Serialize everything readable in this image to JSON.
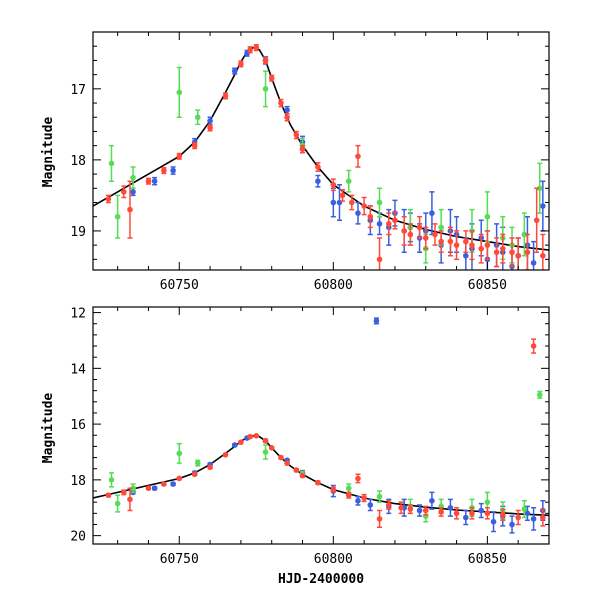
{
  "chart_data": [
    {
      "type": "scatter",
      "panel": "top",
      "xlabel": "",
      "ylabel": "Magnitude",
      "xlim": [
        60722,
        60870
      ],
      "ylim": [
        19.55,
        16.2
      ],
      "y_inverted": true,
      "xticks": [
        60750,
        60800,
        60850
      ],
      "xtick_labels": [
        "60750",
        "60800",
        "60850"
      ],
      "yticks": [
        17,
        18,
        19
      ],
      "ytick_labels": [
        "17",
        "18",
        "19"
      ],
      "grid": false,
      "legend": "none",
      "series": [
        {
          "color": "#3a5fe0",
          "points": [
            [
              60735,
              18.45
            ],
            [
              60742,
              18.3
            ],
            [
              60748,
              18.15
            ],
            [
              60755,
              17.75
            ],
            [
              60760,
              17.45
            ],
            [
              60768,
              16.75
            ],
            [
              60772,
              16.5
            ],
            [
              60778,
              16.6
            ],
            [
              60785,
              17.3
            ],
            [
              60790,
              17.75
            ],
            [
              60795,
              18.3
            ],
            [
              60800,
              18.6
            ],
            [
              60802,
              18.6
            ],
            [
              60808,
              18.75
            ],
            [
              60812,
              18.85
            ],
            [
              60815,
              18.9
            ],
            [
              60818,
              18.95
            ],
            [
              60820,
              18.75
            ],
            [
              60823,
              19.0
            ],
            [
              60825,
              18.95
            ],
            [
              60828,
              19.1
            ],
            [
              60830,
              19.0
            ],
            [
              60832,
              18.75
            ],
            [
              60835,
              19.2
            ],
            [
              60838,
              19.0
            ],
            [
              60840,
              19.05
            ],
            [
              60843,
              19.35
            ],
            [
              60845,
              19.25
            ],
            [
              60848,
              19.1
            ],
            [
              60850,
              19.4
            ],
            [
              60853,
              19.2
            ],
            [
              60855,
              19.3
            ],
            [
              60858,
              19.5
            ],
            [
              60860,
              19.35
            ],
            [
              60863,
              19.2
            ],
            [
              60865,
              19.45
            ],
            [
              60868,
              18.65
            ]
          ],
          "errors": [
            0.05,
            0.05,
            0.05,
            0.05,
            0.05,
            0.04,
            0.04,
            0.05,
            0.05,
            0.08,
            0.08,
            0.2,
            0.25,
            0.15,
            0.2,
            0.15,
            0.25,
            0.18,
            0.3,
            0.2,
            0.2,
            0.25,
            0.3,
            0.25,
            0.3,
            0.25,
            0.25,
            0.35,
            0.25,
            0.4,
            0.3,
            0.35,
            0.3,
            0.25,
            0.4,
            0.3,
            0.35
          ]
        },
        {
          "color": "#55dd55",
          "points": [
            [
              60728,
              18.05
            ],
            [
              60730,
              18.8
            ],
            [
              60735,
              18.25
            ],
            [
              60750,
              17.05
            ],
            [
              60756,
              17.4
            ],
            [
              60778,
              17.0
            ],
            [
              60790,
              17.8
            ],
            [
              60805,
              18.3
            ],
            [
              60815,
              18.6
            ],
            [
              60825,
              18.95
            ],
            [
              60830,
              19.25
            ],
            [
              60835,
              18.95
            ],
            [
              60845,
              19.0
            ],
            [
              60850,
              18.8
            ],
            [
              60855,
              19.1
            ],
            [
              60858,
              19.2
            ],
            [
              60862,
              19.05
            ],
            [
              60867,
              18.4
            ]
          ],
          "errors": [
            0.25,
            0.3,
            0.15,
            0.35,
            0.1,
            0.25,
            0.1,
            0.15,
            0.2,
            0.25,
            0.2,
            0.25,
            0.3,
            0.35,
            0.3,
            0.25,
            0.3,
            0.35
          ]
        },
        {
          "color": "#ff4a3a",
          "points": [
            [
              60727,
              18.55
            ],
            [
              60732,
              18.45
            ],
            [
              60734,
              18.7
            ],
            [
              60740,
              18.3
            ],
            [
              60745,
              18.15
            ],
            [
              60750,
              17.95
            ],
            [
              60755,
              17.8
            ],
            [
              60760,
              17.55
            ],
            [
              60765,
              17.1
            ],
            [
              60770,
              16.65
            ],
            [
              60773,
              16.45
            ],
            [
              60775,
              16.42
            ],
            [
              60778,
              16.6
            ],
            [
              60780,
              16.85
            ],
            [
              60783,
              17.2
            ],
            [
              60785,
              17.4
            ],
            [
              60788,
              17.65
            ],
            [
              60790,
              17.85
            ],
            [
              60795,
              18.1
            ],
            [
              60800,
              18.35
            ],
            [
              60803,
              18.5
            ],
            [
              60806,
              18.6
            ],
            [
              60808,
              17.95
            ],
            [
              60810,
              18.65
            ],
            [
              60812,
              18.8
            ],
            [
              60815,
              19.4
            ],
            [
              60818,
              18.9
            ],
            [
              60820,
              18.85
            ],
            [
              60823,
              19.0
            ],
            [
              60825,
              19.05
            ],
            [
              60828,
              18.95
            ],
            [
              60830,
              19.1
            ],
            [
              60833,
              19.05
            ],
            [
              60835,
              19.15
            ],
            [
              60838,
              19.15
            ],
            [
              60840,
              19.2
            ],
            [
              60843,
              19.15
            ],
            [
              60845,
              19.2
            ],
            [
              60848,
              19.25
            ],
            [
              60850,
              19.2
            ],
            [
              60853,
              19.3
            ],
            [
              60855,
              19.25
            ],
            [
              60858,
              19.3
            ],
            [
              60860,
              19.35
            ],
            [
              60863,
              19.3
            ],
            [
              60866,
              18.85
            ],
            [
              60868,
              19.35
            ]
          ],
          "errors": [
            0.05,
            0.08,
            0.4,
            0.04,
            0.04,
            0.04,
            0.04,
            0.04,
            0.04,
            0.04,
            0.04,
            0.04,
            0.04,
            0.04,
            0.05,
            0.05,
            0.05,
            0.05,
            0.06,
            0.08,
            0.08,
            0.1,
            0.15,
            0.12,
            0.15,
            0.3,
            0.15,
            0.12,
            0.2,
            0.15,
            0.15,
            0.15,
            0.15,
            0.15,
            0.2,
            0.2,
            0.15,
            0.2,
            0.2,
            0.2,
            0.2,
            0.2,
            0.2,
            0.25,
            0.25,
            0.45,
            0.3
          ]
        }
      ],
      "model_curve": {
        "color": "#000000",
        "x": [
          60722,
          60730,
          60740,
          60750,
          60755,
          60760,
          60765,
          60768,
          60770,
          60772,
          60774,
          60776,
          60778,
          60780,
          60783,
          60786,
          60790,
          60795,
          60800,
          60810,
          60820,
          60830,
          60840,
          60850,
          60860,
          60870
        ],
        "y": [
          18.65,
          18.45,
          18.2,
          17.95,
          17.75,
          17.45,
          17.05,
          16.8,
          16.62,
          16.48,
          16.42,
          16.45,
          16.6,
          16.85,
          17.2,
          17.5,
          17.8,
          18.1,
          18.35,
          18.65,
          18.85,
          18.98,
          19.08,
          19.15,
          19.22,
          19.27
        ]
      }
    },
    {
      "type": "scatter",
      "panel": "bottom",
      "xlabel": "HJD-2400000",
      "ylabel": "Magnitude",
      "xlim": [
        60722,
        60870
      ],
      "ylim": [
        20.3,
        11.8
      ],
      "y_inverted": true,
      "xticks": [
        60750,
        60800,
        60850
      ],
      "xtick_labels": [
        "60750",
        "60800",
        "60850"
      ],
      "yticks": [
        12,
        14,
        16,
        18,
        20
      ],
      "ytick_labels": [
        "12",
        "14",
        "16",
        "18",
        "20"
      ],
      "grid": false,
      "legend": "none",
      "series": [
        {
          "color": "#3a5fe0",
          "points": [
            [
              60735,
              18.45
            ],
            [
              60742,
              18.3
            ],
            [
              60748,
              18.15
            ],
            [
              60755,
              17.75
            ],
            [
              60760,
              17.45
            ],
            [
              60768,
              16.75
            ],
            [
              60772,
              16.5
            ],
            [
              60778,
              16.6
            ],
            [
              60785,
              17.3
            ],
            [
              60790,
              17.75
            ],
            [
              60800,
              18.4
            ],
            [
              60808,
              18.75
            ],
            [
              60812,
              18.9
            ],
            [
              60814,
              12.3
            ],
            [
              60818,
              18.95
            ],
            [
              60823,
              19.0
            ],
            [
              60828,
              19.1
            ],
            [
              60832,
              18.75
            ],
            [
              60838,
              19.0
            ],
            [
              60843,
              19.35
            ],
            [
              60848,
              19.1
            ],
            [
              60852,
              19.5
            ],
            [
              60855,
              19.3
            ],
            [
              60858,
              19.6
            ],
            [
              60863,
              19.2
            ],
            [
              60865,
              19.4
            ],
            [
              60868,
              19.1
            ]
          ],
          "errors": [
            0.05,
            0.05,
            0.05,
            0.05,
            0.05,
            0.04,
            0.04,
            0.05,
            0.05,
            0.08,
            0.2,
            0.15,
            0.2,
            0.1,
            0.25,
            0.3,
            0.2,
            0.3,
            0.3,
            0.25,
            0.25,
            0.35,
            0.35,
            0.3,
            0.25,
            0.4,
            0.35
          ]
        },
        {
          "color": "#55dd55",
          "points": [
            [
              60728,
              18.0
            ],
            [
              60730,
              18.85
            ],
            [
              60735,
              18.3
            ],
            [
              60750,
              17.05
            ],
            [
              60756,
              17.4
            ],
            [
              60778,
              17.0
            ],
            [
              60790,
              17.8
            ],
            [
              60805,
              18.3
            ],
            [
              60815,
              18.6
            ],
            [
              60825,
              18.95
            ],
            [
              60830,
              19.3
            ],
            [
              60835,
              18.95
            ],
            [
              60845,
              19.0
            ],
            [
              60850,
              18.8
            ],
            [
              60855,
              19.1
            ],
            [
              60862,
              19.05
            ],
            [
              60867,
              14.95
            ]
          ],
          "errors": [
            0.25,
            0.3,
            0.15,
            0.35,
            0.1,
            0.25,
            0.1,
            0.15,
            0.2,
            0.25,
            0.2,
            0.25,
            0.3,
            0.35,
            0.3,
            0.3,
            0.12
          ]
        },
        {
          "color": "#ff4a3a",
          "points": [
            [
              60727,
              18.55
            ],
            [
              60732,
              18.45
            ],
            [
              60734,
              18.7
            ],
            [
              60740,
              18.3
            ],
            [
              60745,
              18.15
            ],
            [
              60750,
              17.95
            ],
            [
              60755,
              17.8
            ],
            [
              60760,
              17.55
            ],
            [
              60765,
              17.1
            ],
            [
              60770,
              16.65
            ],
            [
              60773,
              16.45
            ],
            [
              60775,
              16.42
            ],
            [
              60778,
              16.6
            ],
            [
              60780,
              16.85
            ],
            [
              60783,
              17.2
            ],
            [
              60785,
              17.4
            ],
            [
              60788,
              17.65
            ],
            [
              60790,
              17.85
            ],
            [
              60795,
              18.1
            ],
            [
              60800,
              18.35
            ],
            [
              60805,
              18.55
            ],
            [
              60808,
              17.95
            ],
            [
              60810,
              18.65
            ],
            [
              60815,
              19.4
            ],
            [
              60818,
              18.9
            ],
            [
              60822,
              19.0
            ],
            [
              60825,
              19.05
            ],
            [
              60830,
              19.1
            ],
            [
              60835,
              19.15
            ],
            [
              60840,
              19.2
            ],
            [
              60845,
              19.2
            ],
            [
              60850,
              19.2
            ],
            [
              60855,
              19.25
            ],
            [
              60860,
              19.35
            ],
            [
              60865,
              13.2
            ],
            [
              60868,
              19.35
            ]
          ],
          "errors": [
            0.05,
            0.08,
            0.4,
            0.04,
            0.04,
            0.04,
            0.04,
            0.04,
            0.04,
            0.04,
            0.04,
            0.04,
            0.04,
            0.04,
            0.05,
            0.05,
            0.05,
            0.05,
            0.06,
            0.08,
            0.1,
            0.15,
            0.12,
            0.3,
            0.15,
            0.2,
            0.15,
            0.15,
            0.15,
            0.2,
            0.2,
            0.2,
            0.2,
            0.25,
            0.25,
            0.3
          ]
        }
      ],
      "model_curve": {
        "color": "#000000",
        "x": [
          60722,
          60730,
          60740,
          60750,
          60755,
          60760,
          60765,
          60768,
          60770,
          60772,
          60774,
          60776,
          60778,
          60780,
          60783,
          60786,
          60790,
          60795,
          60800,
          60810,
          60820,
          60830,
          60840,
          60850,
          60860,
          60870
        ],
        "y": [
          18.65,
          18.45,
          18.2,
          17.95,
          17.75,
          17.45,
          17.05,
          16.8,
          16.62,
          16.48,
          16.42,
          16.45,
          16.6,
          16.85,
          17.2,
          17.5,
          17.8,
          18.1,
          18.35,
          18.65,
          18.85,
          18.98,
          19.08,
          19.15,
          19.22,
          19.27
        ]
      }
    }
  ]
}
